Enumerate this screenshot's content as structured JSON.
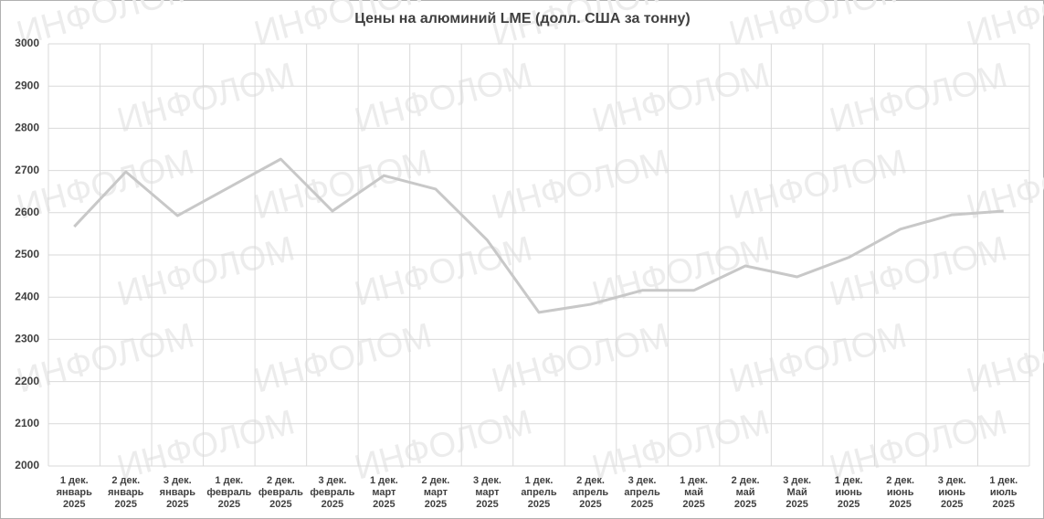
{
  "chart_data": {
    "type": "line",
    "title": "Цены на алюминий LME (долл. США за тонну)",
    "watermark": "ИНФОЛОМ",
    "categories": [
      [
        "1 дек.",
        "январь",
        "2025"
      ],
      [
        "2 дек.",
        "январь",
        "2025"
      ],
      [
        "3 дек.",
        "январь",
        "2025"
      ],
      [
        "1 дек.",
        "февраль",
        "2025"
      ],
      [
        "2 дек.",
        "февраль",
        "2025"
      ],
      [
        "3 дек.",
        "февраль",
        "2025"
      ],
      [
        "1 дек.",
        "март",
        "2025"
      ],
      [
        "2 дек.",
        "март",
        "2025"
      ],
      [
        "3 дек.",
        "март",
        "2025"
      ],
      [
        "1 дек.",
        "апрель",
        "2025"
      ],
      [
        "2 дек.",
        "апрель",
        "2025"
      ],
      [
        "3 дек.",
        "апрель",
        "2025"
      ],
      [
        "1 дек.",
        "май",
        "2025"
      ],
      [
        "2 дек.",
        "май",
        "2025"
      ],
      [
        "3 дек.",
        "Май",
        "2025"
      ],
      [
        "1 дек.",
        "июнь",
        "2025"
      ],
      [
        "2 дек.",
        "июнь",
        "2025"
      ],
      [
        "3 дек.",
        "июнь",
        "2025"
      ],
      [
        "1 дек.",
        "июль",
        "2025"
      ]
    ],
    "values": [
      2567,
      2697,
      2593,
      2660,
      2727,
      2604,
      2688,
      2656,
      2535,
      2364,
      2383,
      2416,
      2416,
      2474,
      2448,
      2494,
      2561,
      2595,
      2604
    ],
    "color": "#c8c8c8",
    "ylim": [
      2000,
      3000
    ],
    "yticks": [
      2000,
      2100,
      2200,
      2300,
      2400,
      2500,
      2600,
      2700,
      2800,
      2900,
      3000
    ],
    "grid": true
  }
}
